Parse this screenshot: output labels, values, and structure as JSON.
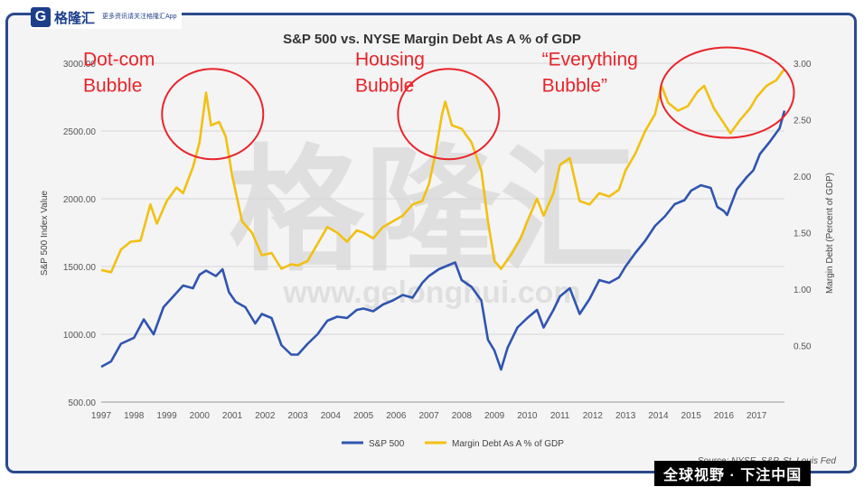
{
  "branding": {
    "logo_mark": "G",
    "logo_name": "格隆汇",
    "logo_tagline": "更多资讯请关注格隆汇App",
    "watermark_cn": "格隆汇",
    "watermark_url": "www.gelonghui.com",
    "bottom_caption": "全球视野 · 下注中国"
  },
  "colors": {
    "sp500": "#2f55b0",
    "margin": "#f2c012",
    "annotation": "#e8242a",
    "frame": "#2b4a8c"
  },
  "chart_data": {
    "type": "line",
    "title": "S&P 500 vs. NYSE Margin Debt As A % of GDP",
    "ylabel": "S&P 500 Index Value",
    "y2label": "Margin Debt (Percent of GDP)",
    "source": "Source: NYSE, S&P, St. Louis Fed",
    "xlim": [
      1997,
      2017.85
    ],
    "ylim": [
      500,
      3000
    ],
    "y2lim": [
      0,
      3.0
    ],
    "x_ticks": [
      "1997",
      "1998",
      "1999",
      "2000",
      "2001",
      "2002",
      "2003",
      "2004",
      "2005",
      "2006",
      "2007",
      "2008",
      "2009",
      "2010",
      "2011",
      "2012",
      "2013",
      "2014",
      "2015",
      "2016",
      "2017"
    ],
    "y_ticks": [
      "500.00",
      "1000.00",
      "1500.00",
      "2000.00",
      "2500.00",
      "3000.00"
    ],
    "y2_ticks": [
      "0.50",
      "1.00",
      "1.50",
      "2.00",
      "2.50",
      "3.00"
    ],
    "grid": true,
    "legend_position": "bottom-center",
    "series": [
      {
        "name": "S&P 500",
        "axis": "left",
        "points": [
          [
            1997.0,
            760
          ],
          [
            1997.3,
            800
          ],
          [
            1997.6,
            930
          ],
          [
            1998.0,
            975
          ],
          [
            1998.3,
            1110
          ],
          [
            1998.6,
            1000
          ],
          [
            1998.9,
            1200
          ],
          [
            1999.2,
            1280
          ],
          [
            1999.5,
            1360
          ],
          [
            1999.8,
            1340
          ],
          [
            2000.0,
            1440
          ],
          [
            2000.2,
            1470
          ],
          [
            2000.5,
            1430
          ],
          [
            2000.7,
            1480
          ],
          [
            2000.9,
            1310
          ],
          [
            2001.1,
            1240
          ],
          [
            2001.4,
            1200
          ],
          [
            2001.7,
            1080
          ],
          [
            2001.9,
            1150
          ],
          [
            2002.2,
            1120
          ],
          [
            2002.5,
            920
          ],
          [
            2002.8,
            850
          ],
          [
            2003.0,
            850
          ],
          [
            2003.3,
            930
          ],
          [
            2003.6,
            1000
          ],
          [
            2003.9,
            1100
          ],
          [
            2004.2,
            1130
          ],
          [
            2004.5,
            1120
          ],
          [
            2004.8,
            1180
          ],
          [
            2005.0,
            1190
          ],
          [
            2005.3,
            1170
          ],
          [
            2005.6,
            1220
          ],
          [
            2005.9,
            1250
          ],
          [
            2006.2,
            1290
          ],
          [
            2006.5,
            1270
          ],
          [
            2006.8,
            1380
          ],
          [
            2007.0,
            1430
          ],
          [
            2007.3,
            1480
          ],
          [
            2007.6,
            1510
          ],
          [
            2007.8,
            1530
          ],
          [
            2008.0,
            1400
          ],
          [
            2008.3,
            1350
          ],
          [
            2008.6,
            1250
          ],
          [
            2008.8,
            960
          ],
          [
            2009.0,
            880
          ],
          [
            2009.2,
            740
          ],
          [
            2009.4,
            900
          ],
          [
            2009.7,
            1050
          ],
          [
            2010.0,
            1120
          ],
          [
            2010.3,
            1180
          ],
          [
            2010.5,
            1050
          ],
          [
            2010.8,
            1180
          ],
          [
            2011.0,
            1280
          ],
          [
            2011.3,
            1340
          ],
          [
            2011.6,
            1150
          ],
          [
            2011.9,
            1260
          ],
          [
            2012.2,
            1400
          ],
          [
            2012.5,
            1380
          ],
          [
            2012.8,
            1420
          ],
          [
            2013.0,
            1500
          ],
          [
            2013.3,
            1600
          ],
          [
            2013.6,
            1690
          ],
          [
            2013.9,
            1800
          ],
          [
            2014.2,
            1870
          ],
          [
            2014.5,
            1960
          ],
          [
            2014.8,
            1990
          ],
          [
            2015.0,
            2060
          ],
          [
            2015.3,
            2100
          ],
          [
            2015.6,
            2080
          ],
          [
            2015.8,
            1940
          ],
          [
            2016.0,
            1910
          ],
          [
            2016.1,
            1880
          ],
          [
            2016.4,
            2070
          ],
          [
            2016.7,
            2160
          ],
          [
            2016.9,
            2210
          ],
          [
            2017.1,
            2330
          ],
          [
            2017.4,
            2420
          ],
          [
            2017.7,
            2520
          ],
          [
            2017.85,
            2650
          ]
        ]
      },
      {
        "name": "Margin Debt As A % of GDP",
        "axis": "right",
        "points": [
          [
            1997.0,
            1.17
          ],
          [
            1997.3,
            1.15
          ],
          [
            1997.6,
            1.35
          ],
          [
            1997.9,
            1.42
          ],
          [
            1998.2,
            1.43
          ],
          [
            1998.5,
            1.75
          ],
          [
            1998.7,
            1.58
          ],
          [
            1999.0,
            1.78
          ],
          [
            1999.3,
            1.9
          ],
          [
            1999.5,
            1.85
          ],
          [
            1999.8,
            2.08
          ],
          [
            2000.0,
            2.3
          ],
          [
            2000.2,
            2.74
          ],
          [
            2000.35,
            2.45
          ],
          [
            2000.6,
            2.48
          ],
          [
            2000.8,
            2.35
          ],
          [
            2001.0,
            2.0
          ],
          [
            2001.3,
            1.6
          ],
          [
            2001.6,
            1.5
          ],
          [
            2001.9,
            1.3
          ],
          [
            2002.2,
            1.32
          ],
          [
            2002.5,
            1.18
          ],
          [
            2002.8,
            1.22
          ],
          [
            2003.0,
            1.21
          ],
          [
            2003.3,
            1.25
          ],
          [
            2003.6,
            1.4
          ],
          [
            2003.9,
            1.55
          ],
          [
            2004.2,
            1.5
          ],
          [
            2004.5,
            1.42
          ],
          [
            2004.8,
            1.52
          ],
          [
            2005.0,
            1.5
          ],
          [
            2005.3,
            1.45
          ],
          [
            2005.6,
            1.55
          ],
          [
            2005.9,
            1.6
          ],
          [
            2006.2,
            1.65
          ],
          [
            2006.5,
            1.75
          ],
          [
            2006.8,
            1.78
          ],
          [
            2007.0,
            1.93
          ],
          [
            2007.2,
            2.2
          ],
          [
            2007.4,
            2.55
          ],
          [
            2007.5,
            2.66
          ],
          [
            2007.7,
            2.45
          ],
          [
            2008.0,
            2.42
          ],
          [
            2008.3,
            2.3
          ],
          [
            2008.6,
            2.05
          ],
          [
            2008.8,
            1.6
          ],
          [
            2009.0,
            1.25
          ],
          [
            2009.2,
            1.18
          ],
          [
            2009.5,
            1.3
          ],
          [
            2009.8,
            1.45
          ],
          [
            2010.0,
            1.6
          ],
          [
            2010.3,
            1.8
          ],
          [
            2010.5,
            1.65
          ],
          [
            2010.8,
            1.85
          ],
          [
            2011.0,
            2.1
          ],
          [
            2011.3,
            2.16
          ],
          [
            2011.6,
            1.78
          ],
          [
            2011.9,
            1.75
          ],
          [
            2012.2,
            1.85
          ],
          [
            2012.5,
            1.82
          ],
          [
            2012.8,
            1.88
          ],
          [
            2013.0,
            2.05
          ],
          [
            2013.3,
            2.2
          ],
          [
            2013.6,
            2.4
          ],
          [
            2013.9,
            2.55
          ],
          [
            2014.1,
            2.8
          ],
          [
            2014.3,
            2.65
          ],
          [
            2014.6,
            2.58
          ],
          [
            2014.9,
            2.62
          ],
          [
            2015.2,
            2.75
          ],
          [
            2015.4,
            2.8
          ],
          [
            2015.7,
            2.6
          ],
          [
            2016.0,
            2.47
          ],
          [
            2016.2,
            2.38
          ],
          [
            2016.5,
            2.5
          ],
          [
            2016.8,
            2.6
          ],
          [
            2017.0,
            2.7
          ],
          [
            2017.3,
            2.8
          ],
          [
            2017.6,
            2.85
          ],
          [
            2017.85,
            2.95
          ]
        ]
      }
    ],
    "annotations": [
      {
        "text": [
          "Dot-com",
          "Bubble"
        ],
        "x": 1997.0,
        "y": 2.95,
        "circle_center": [
          2000.4,
          2.55
        ]
      },
      {
        "text": [
          "Housing",
          "Bubble"
        ],
        "x": 2005.3,
        "y": 2.95,
        "circle_center": [
          2007.6,
          2.55
        ]
      },
      {
        "text": [
          "“Everything",
          "Bubble”"
        ],
        "x": 2011.0,
        "y": 2.95,
        "circle_center": [
          2016.1,
          2.74
        ]
      }
    ]
  }
}
